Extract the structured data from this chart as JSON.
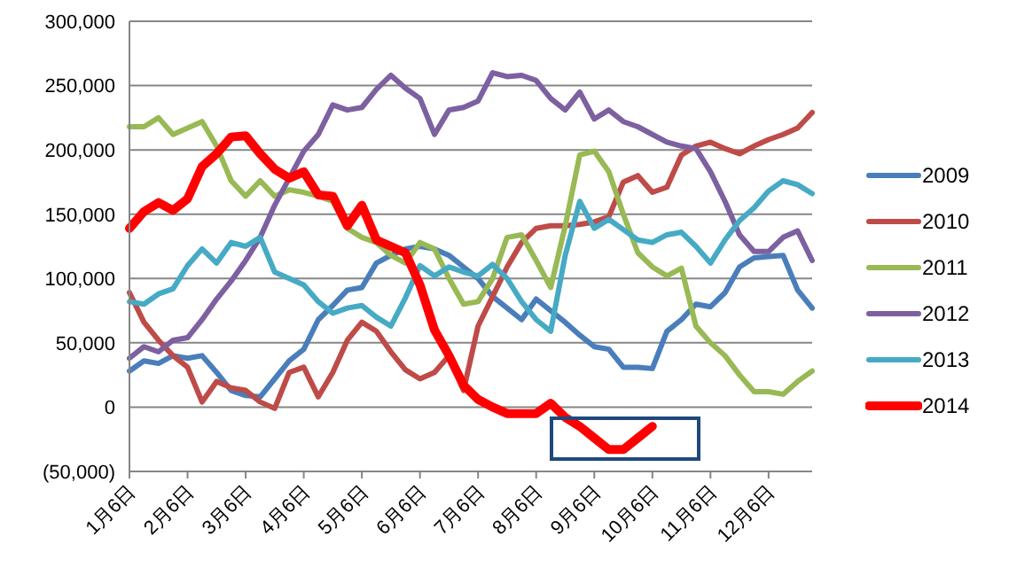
{
  "chart_data": {
    "type": "line",
    "categories": [
      "1月6日",
      null,
      null,
      null,
      "2月6日",
      null,
      null,
      null,
      "3月6日",
      null,
      null,
      null,
      "4月6日",
      null,
      null,
      null,
      "5月6日",
      null,
      null,
      null,
      "6月6日",
      null,
      null,
      null,
      "7月6日",
      null,
      null,
      null,
      "8月6日",
      null,
      null,
      null,
      "9月6日",
      null,
      null,
      null,
      "10月6日",
      null,
      null,
      null,
      "11月6日",
      null,
      null,
      null,
      "12月6日",
      null,
      null,
      null
    ],
    "series": [
      {
        "name": "2009",
        "color": "#4a7ebb",
        "values": [
          28000,
          36000,
          34000,
          40000,
          38000,
          40000,
          27000,
          13000,
          9000,
          8000,
          22000,
          36000,
          45000,
          68000,
          79000,
          91000,
          93000,
          112000,
          118000,
          123000,
          125000,
          123000,
          118000,
          109000,
          100000,
          86000,
          77000,
          68000,
          84000,
          75000,
          66000,
          56000,
          47000,
          45000,
          31000,
          31000,
          30000,
          59000,
          68000,
          80000,
          78000,
          89000,
          109000,
          116000,
          117000,
          118000,
          91000,
          77000
        ]
      },
      {
        "name": "2010",
        "color": "#be4b48",
        "values": [
          89000,
          66000,
          52000,
          40000,
          31000,
          4000,
          20000,
          15000,
          13000,
          4000,
          -1000,
          27000,
          31000,
          8000,
          27000,
          52000,
          66000,
          59000,
          43000,
          29000,
          22000,
          27000,
          40000,
          13000,
          63000,
          86000,
          109000,
          128000,
          139000,
          141000,
          141000,
          142000,
          144000,
          148000,
          175000,
          180000,
          167000,
          171000,
          196000,
          203000,
          206000,
          201000,
          197000,
          203000,
          208000,
          212000,
          217000,
          229000
        ]
      },
      {
        "name": "2011",
        "color": "#98b954",
        "values": [
          218000,
          218000,
          225000,
          212000,
          217000,
          222000,
          203000,
          176000,
          164000,
          176000,
          164000,
          169000,
          167000,
          164000,
          160000,
          139000,
          132000,
          128000,
          118000,
          112000,
          128000,
          123000,
          100000,
          80000,
          82000,
          100000,
          132000,
          134000,
          114000,
          93000,
          141000,
          196000,
          199000,
          183000,
          150000,
          120000,
          109000,
          102000,
          108000,
          63000,
          50000,
          40000,
          25000,
          12000,
          12000,
          10000,
          20000,
          28000
        ]
      },
      {
        "name": "2012",
        "color": "#7d60a0",
        "values": [
          38000,
          47000,
          43000,
          52000,
          54000,
          68000,
          84000,
          98000,
          114000,
          132000,
          157000,
          178000,
          199000,
          212000,
          235000,
          231000,
          233000,
          247000,
          258000,
          248000,
          240000,
          212000,
          231000,
          233000,
          238000,
          260000,
          257000,
          258000,
          254000,
          240000,
          231000,
          245000,
          224000,
          231000,
          222000,
          218000,
          212000,
          206000,
          203000,
          201000,
          183000,
          160000,
          134000,
          121000,
          121000,
          132000,
          137000,
          114000
        ]
      },
      {
        "name": "2013",
        "color": "#46aac5",
        "values": [
          82000,
          80000,
          88000,
          92000,
          110000,
          123000,
          112000,
          128000,
          125000,
          132000,
          105000,
          100000,
          95000,
          82000,
          73000,
          77000,
          79000,
          70000,
          63000,
          85000,
          110000,
          102000,
          109000,
          105000,
          102000,
          111000,
          100000,
          82000,
          68000,
          59000,
          118000,
          160000,
          139000,
          146000,
          138000,
          130000,
          128000,
          134000,
          136000,
          125000,
          112000,
          130000,
          145000,
          155000,
          168000,
          176000,
          173000,
          166000
        ]
      },
      {
        "name": "2014",
        "color": "#ff0000",
        "values": [
          139000,
          152000,
          159000,
          153000,
          162000,
          187000,
          197000,
          210000,
          211000,
          197000,
          185000,
          178000,
          183000,
          165000,
          164000,
          141000,
          157000,
          130000,
          125000,
          120000,
          95000,
          60000,
          40000,
          17000,
          6000,
          0,
          -5000,
          -5000,
          -5000,
          3000,
          -8000,
          -15000,
          -24000,
          -33000,
          -33000,
          -24000,
          -15000,
          null,
          null,
          null,
          null,
          null,
          null,
          null,
          null,
          null,
          null,
          null
        ]
      }
    ],
    "ylim": [
      -50000,
      300000
    ],
    "yticks": [
      {
        "value": -50000,
        "label": "(50,000)"
      },
      {
        "value": 0,
        "label": "0"
      },
      {
        "value": 50000,
        "label": "50,000"
      },
      {
        "value": 100000,
        "label": "100,000"
      },
      {
        "value": 150000,
        "label": "150,000"
      },
      {
        "value": 200000,
        "label": "200,000"
      },
      {
        "value": 250000,
        "label": "250,000"
      },
      {
        "value": 300000,
        "label": "300,000"
      }
    ],
    "grid": "y",
    "legend": "right",
    "marker": "none",
    "line_style": "solid"
  }
}
